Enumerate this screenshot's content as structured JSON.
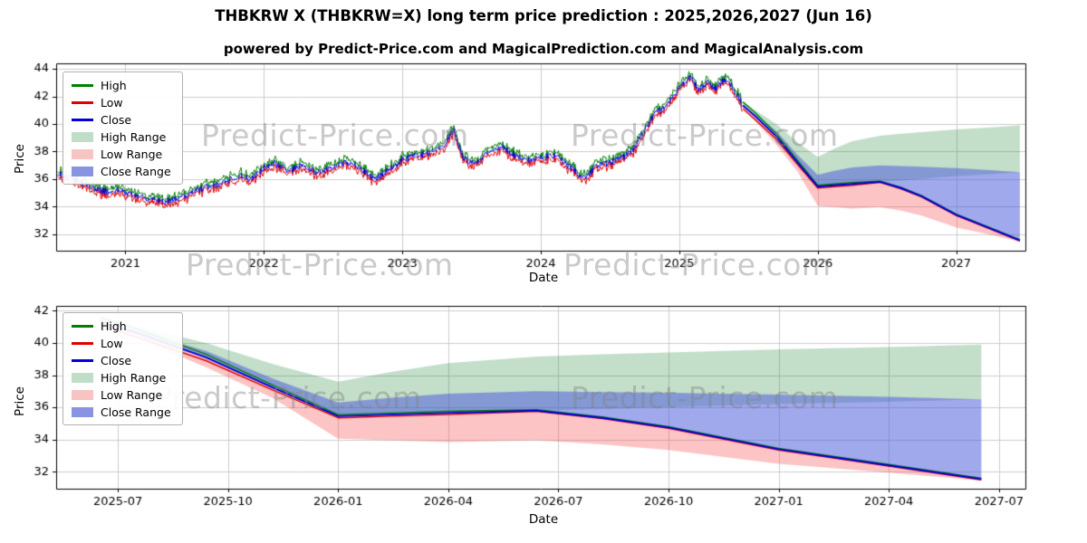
{
  "header": {
    "title": "THBKRW X (THBKRW=X) long term price prediction : 2025,2026,2027 (Jun 16)",
    "subtitle": "powered by Predict-Price.com and MagicalPrediction.com and MagicalAnalysis.com"
  },
  "watermarks": [
    "Predict-Price.com",
    "Predict-Price.com",
    "Predict-Price.com",
    "Predict-Price.com",
    "Predict-Price.com",
    "Predict-Price.com"
  ],
  "chart_data": {
    "type": "line",
    "title": "THBKRW X (THBKRW=X) long term price prediction : 2025,2026,2027 (Jun 16)",
    "subtitle": "powered by Predict-Price.com and MagicalPrediction.com and MagicalAnalysis.com",
    "legend": {
      "position": "upper left",
      "entries": [
        {
          "label": "High",
          "swatch": "line",
          "color": "#008000"
        },
        {
          "label": "Low",
          "swatch": "line",
          "color": "#e00000"
        },
        {
          "label": "Close",
          "swatch": "line",
          "color": "#0000dc"
        },
        {
          "label": "High Range",
          "swatch": "rect",
          "color": "#bfdec7"
        },
        {
          "label": "Low Range",
          "swatch": "rect",
          "color": "#f7c3c3"
        },
        {
          "label": "Close Range",
          "swatch": "rect",
          "color": "#8893e2"
        }
      ]
    },
    "colors": {
      "high_line": "#008000",
      "low_line": "#e00000",
      "close_line": "#0000dc",
      "high_fill": "rgba(40,135,60,0.28)",
      "low_fill": "rgba(245,70,70,0.32)",
      "close_fill": "rgba(75,90,220,0.52)",
      "grid": "#cccccc",
      "axis": "#000000",
      "watermark": "#808080"
    },
    "historical": {
      "x": [
        2020.51,
        2020.62,
        2020.72,
        2020.85,
        2020.95,
        2021.05,
        2021.15,
        2021.28,
        2021.38,
        2021.5,
        2021.6,
        2021.72,
        2021.82,
        2021.9,
        2022.0,
        2022.08,
        2022.18,
        2022.28,
        2022.38,
        2022.5,
        2022.6,
        2022.7,
        2022.8,
        2022.9,
        2023.0,
        2023.1,
        2023.2,
        2023.3,
        2023.37,
        2023.44,
        2023.52,
        2023.62,
        2023.72,
        2023.82,
        2023.92,
        2024.0,
        2024.1,
        2024.18,
        2024.27,
        2024.32,
        2024.4,
        2024.5,
        2024.6,
        2024.68,
        2024.75,
        2024.82,
        2024.9,
        2024.97,
        2025.03,
        2025.08,
        2025.14,
        2025.2,
        2025.26,
        2025.32,
        2025.38,
        2025.43,
        2025.46
      ],
      "close": [
        36.4,
        36.0,
        35.5,
        35.1,
        35.2,
        34.9,
        34.6,
        34.35,
        34.55,
        35.1,
        35.45,
        35.8,
        36.3,
        35.9,
        36.8,
        37.15,
        36.6,
        36.95,
        36.5,
        36.85,
        37.25,
        36.8,
        35.95,
        36.6,
        37.4,
        37.75,
        37.9,
        38.5,
        39.55,
        37.5,
        37.1,
        37.85,
        38.3,
        37.7,
        37.3,
        37.55,
        37.75,
        37.1,
        36.4,
        36.0,
        37.0,
        37.2,
        37.6,
        38.3,
        39.5,
        40.7,
        41.2,
        42.2,
        43.0,
        43.35,
        42.5,
        43.0,
        42.6,
        43.15,
        42.8,
        41.9,
        41.35
      ]
    },
    "noise": {
      "seed": 20250616,
      "step": 0.006,
      "close_amp": 0.5,
      "hl_gap": 0.1,
      "hl_amp": 0.3
    },
    "forecast": {
      "x": [
        2025.46,
        2025.55,
        2025.7,
        2025.85,
        2026.0,
        2026.12,
        2026.25,
        2026.45,
        2026.6,
        2026.75,
        2027.0,
        2027.25,
        2027.46
      ],
      "close": [
        41.35,
        40.55,
        39.1,
        37.25,
        35.45,
        35.55,
        35.65,
        35.8,
        35.35,
        34.75,
        33.4,
        32.4,
        31.55
      ],
      "high": [
        41.6,
        40.8,
        39.3,
        37.4,
        35.55,
        35.65,
        35.75,
        35.85,
        35.4,
        34.8,
        33.45,
        32.45,
        31.6
      ],
      "low": [
        41.1,
        40.3,
        38.9,
        37.1,
        35.35,
        35.45,
        35.55,
        35.75,
        35.3,
        34.7,
        33.35,
        32.35,
        31.5
      ],
      "high_band_top": [
        41.6,
        41.0,
        40.0,
        38.7,
        37.6,
        38.2,
        38.75,
        39.15,
        39.3,
        39.4,
        39.6,
        39.75,
        39.9
      ],
      "high_band_bottom": [
        41.35,
        40.55,
        39.1,
        37.25,
        35.45,
        35.55,
        35.65,
        35.8,
        35.9,
        36.0,
        36.2,
        36.35,
        36.5
      ],
      "close_band_top": [
        41.35,
        40.7,
        39.5,
        37.8,
        36.3,
        36.6,
        36.85,
        37.0,
        36.95,
        36.9,
        36.8,
        36.65,
        36.5
      ],
      "low_band_bottom": [
        41.1,
        40.2,
        38.5,
        36.6,
        34.05,
        33.95,
        33.85,
        33.95,
        33.7,
        33.35,
        32.5,
        31.95,
        31.45
      ]
    },
    "charts": [
      {
        "name": "full-history-with-forecast",
        "show_history": true,
        "xlabel": "Date",
        "ylabel": "Price",
        "xlim": [
          2020.5,
          2027.5
        ],
        "ylim": [
          30.8,
          44.4
        ],
        "xticks": [
          {
            "v": 2021,
            "label": "2021"
          },
          {
            "v": 2022,
            "label": "2022"
          },
          {
            "v": 2023,
            "label": "2023"
          },
          {
            "v": 2024,
            "label": "2024"
          },
          {
            "v": 2025,
            "label": "2025"
          },
          {
            "v": 2026,
            "label": "2026"
          },
          {
            "v": 2027,
            "label": "2027"
          }
        ],
        "yticks": [
          {
            "v": 32,
            "label": "32"
          },
          {
            "v": 34,
            "label": "34"
          },
          {
            "v": 36,
            "label": "36"
          },
          {
            "v": 38,
            "label": "38"
          },
          {
            "v": 40,
            "label": "40"
          },
          {
            "v": 42,
            "label": "42"
          },
          {
            "v": 44,
            "label": "44"
          }
        ]
      },
      {
        "name": "forecast-detail",
        "show_history": false,
        "xlabel": "Date",
        "ylabel": "Price",
        "xlim": [
          2025.36,
          2027.56
        ],
        "ylim": [
          30.95,
          42.3
        ],
        "xticks": [
          {
            "v": 2025.5,
            "label": "2025-07"
          },
          {
            "v": 2025.75,
            "label": "2025-10"
          },
          {
            "v": 2026.0,
            "label": "2026-01"
          },
          {
            "v": 2026.25,
            "label": "2026-04"
          },
          {
            "v": 2026.5,
            "label": "2026-07"
          },
          {
            "v": 2026.75,
            "label": "2026-10"
          },
          {
            "v": 2027.0,
            "label": "2027-01"
          },
          {
            "v": 2027.25,
            "label": "2027-04"
          },
          {
            "v": 2027.5,
            "label": "2027-07"
          }
        ],
        "yticks": [
          {
            "v": 32,
            "label": "32"
          },
          {
            "v": 34,
            "label": "34"
          },
          {
            "v": 36,
            "label": "36"
          },
          {
            "v": 38,
            "label": "38"
          },
          {
            "v": 40,
            "label": "40"
          },
          {
            "v": 42,
            "label": "42"
          }
        ]
      }
    ]
  }
}
